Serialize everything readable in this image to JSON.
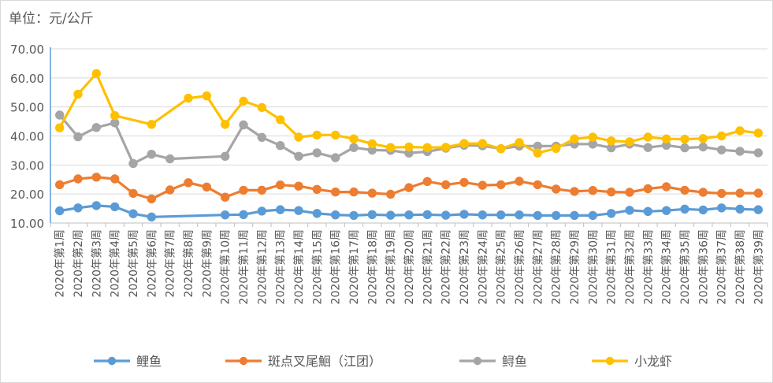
{
  "chart_data": {
    "type": "line",
    "unit_label": "单位：元/公斤",
    "title": "",
    "xlabel": "",
    "ylabel": "",
    "ylim": [
      10,
      70
    ],
    "yticks": [
      "10.00",
      "20.00",
      "30.00",
      "40.00",
      "50.00",
      "60.00",
      "70.00"
    ],
    "grid": true,
    "legend_position": "bottom",
    "categories": [
      "2020年第1周",
      "2020年第2周",
      "2020年第3周",
      "2020年第4周",
      "2020年第5周",
      "2020年第6周",
      "2020年第7周",
      "2020年第8周",
      "2020年第9周",
      "2020年第10周",
      "2020年第11周",
      "2020年第12周",
      "2020年第13周",
      "2020年第14周",
      "2020年第15周",
      "2020年第16周",
      "2020年第17周",
      "2020年第18周",
      "2020年第19周",
      "2020年第20周",
      "2020年第21周",
      "2020年第22周",
      "2020年第23周",
      "2020年第24周",
      "2020年第25周",
      "2020年第26周",
      "2020年第27周",
      "2020年第28周",
      "2020年第29周",
      "2020年第30周",
      "2020年第31周",
      "2020年第32周",
      "2020年第33周",
      "2020年第34周",
      "2020年第35周",
      "2020年第36周",
      "2020年第37周",
      "2020年第38周",
      "2020年第39周"
    ],
    "series": [
      {
        "name": "鲤鱼",
        "color": "#5b9bd5",
        "values": [
          14.2,
          15.2,
          16.0,
          15.6,
          13.2,
          12.1,
          null,
          null,
          null,
          12.8,
          12.9,
          14.1,
          14.6,
          14.3,
          13.3,
          12.8,
          12.6,
          12.9,
          12.7,
          12.8,
          12.9,
          12.7,
          13.0,
          12.8,
          12.8,
          12.8,
          12.6,
          12.6,
          12.6,
          12.6,
          13.3,
          14.4,
          14.0,
          14.3,
          14.8,
          14.5,
          15.2,
          14.8,
          14.6
        ]
      },
      {
        "name": "斑点叉尾鮰（江团）",
        "color": "#ed7d31",
        "values": [
          23.2,
          25.2,
          25.8,
          25.2,
          20.2,
          18.3,
          21.4,
          23.9,
          22.4,
          18.9,
          21.3,
          21.3,
          23.1,
          22.7,
          21.6,
          20.7,
          20.7,
          20.3,
          19.9,
          22.2,
          24.3,
          23.2,
          24.0,
          23.0,
          23.2,
          24.4,
          23.2,
          21.7,
          20.9,
          21.2,
          20.7,
          20.6,
          21.8,
          22.5,
          21.3,
          20.6,
          20.2,
          20.3,
          20.3
        ]
      },
      {
        "name": "鲟鱼",
        "color": "#a5a5a5",
        "values": [
          47.2,
          39.7,
          42.9,
          44.5,
          30.5,
          33.7,
          32.1,
          null,
          null,
          33.0,
          43.8,
          39.5,
          36.7,
          33.0,
          34.2,
          32.5,
          36.0,
          35.1,
          35.0,
          34.1,
          34.6,
          35.8,
          36.8,
          36.6,
          35.6,
          36.5,
          36.5,
          36.5,
          37.2,
          37.2,
          35.9,
          37.2,
          36.0,
          36.8,
          35.9,
          36.2,
          35.2,
          34.7,
          34.2
        ]
      },
      {
        "name": "小龙虾",
        "color": "#ffc000",
        "values": [
          42.8,
          54.4,
          61.5,
          47.0,
          null,
          44.0,
          null,
          53.0,
          53.8,
          44.0,
          52.0,
          49.8,
          45.6,
          39.6,
          40.3,
          40.3,
          39.0,
          37.3,
          36.0,
          36.2,
          36.0,
          36.1,
          37.4,
          37.4,
          35.6,
          37.7,
          34.1,
          35.7,
          39.0,
          39.6,
          38.3,
          38.0,
          39.6,
          39.0,
          38.9,
          39.1,
          40.0,
          41.8,
          41.0
        ]
      }
    ]
  }
}
